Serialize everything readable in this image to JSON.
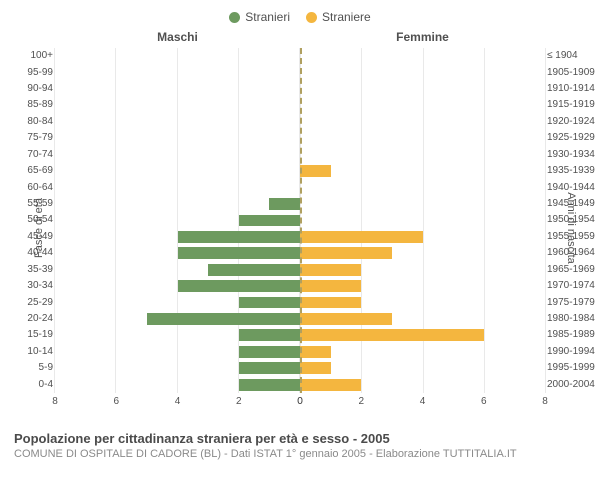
{
  "legend": {
    "male": {
      "label": "Stranieri",
      "color": "#6d9a5f"
    },
    "female": {
      "label": "Straniere",
      "color": "#f4b63f"
    }
  },
  "headers": {
    "left": "Maschi",
    "right": "Femmine"
  },
  "axis_titles": {
    "left": "Fasce di età",
    "right": "Anni di nascita"
  },
  "chart": {
    "type": "population-pyramid",
    "x_max": 8,
    "x_ticks": [
      0,
      2,
      4,
      6,
      8
    ],
    "grid_color": "#e9e9e9",
    "centerline_color": "#b0a060",
    "background_color": "#ffffff",
    "label_fontsize": 10,
    "header_fontsize": 12,
    "rows": [
      {
        "age": "100+",
        "birth": "≤ 1904",
        "m": 0,
        "f": 0
      },
      {
        "age": "95-99",
        "birth": "1905-1909",
        "m": 0,
        "f": 0
      },
      {
        "age": "90-94",
        "birth": "1910-1914",
        "m": 0,
        "f": 0
      },
      {
        "age": "85-89",
        "birth": "1915-1919",
        "m": 0,
        "f": 0
      },
      {
        "age": "80-84",
        "birth": "1920-1924",
        "m": 0,
        "f": 0
      },
      {
        "age": "75-79",
        "birth": "1925-1929",
        "m": 0,
        "f": 0
      },
      {
        "age": "70-74",
        "birth": "1930-1934",
        "m": 0,
        "f": 0
      },
      {
        "age": "65-69",
        "birth": "1935-1939",
        "m": 0,
        "f": 1
      },
      {
        "age": "60-64",
        "birth": "1940-1944",
        "m": 0,
        "f": 0
      },
      {
        "age": "55-59",
        "birth": "1945-1949",
        "m": 1,
        "f": 0
      },
      {
        "age": "50-54",
        "birth": "1950-1954",
        "m": 2,
        "f": 0
      },
      {
        "age": "45-49",
        "birth": "1955-1959",
        "m": 4,
        "f": 4
      },
      {
        "age": "40-44",
        "birth": "1960-1964",
        "m": 4,
        "f": 3
      },
      {
        "age": "35-39",
        "birth": "1965-1969",
        "m": 3,
        "f": 2
      },
      {
        "age": "30-34",
        "birth": "1970-1974",
        "m": 4,
        "f": 2
      },
      {
        "age": "25-29",
        "birth": "1975-1979",
        "m": 2,
        "f": 2
      },
      {
        "age": "20-24",
        "birth": "1980-1984",
        "m": 5,
        "f": 3
      },
      {
        "age": "15-19",
        "birth": "1985-1989",
        "m": 2,
        "f": 6
      },
      {
        "age": "10-14",
        "birth": "1990-1994",
        "m": 2,
        "f": 1
      },
      {
        "age": "5-9",
        "birth": "1995-1999",
        "m": 2,
        "f": 1
      },
      {
        "age": "0-4",
        "birth": "2000-2004",
        "m": 2,
        "f": 2
      }
    ]
  },
  "caption": {
    "title": "Popolazione per cittadinanza straniera per età e sesso - 2005",
    "subtitle": "COMUNE DI OSPITALE DI CADORE (BL) - Dati ISTAT 1° gennaio 2005 - Elaborazione TUTTITALIA.IT"
  }
}
